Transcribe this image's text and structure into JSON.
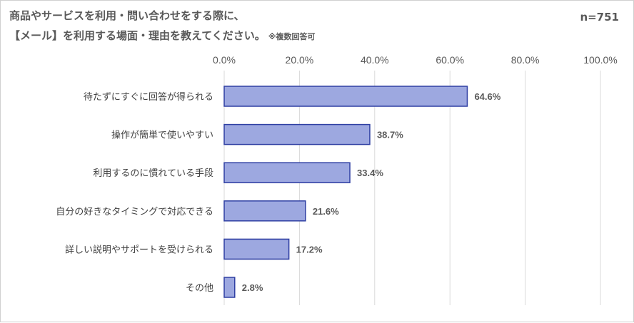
{
  "title": {
    "line1": "商品やサービスを利用・問い合わせをする際に、",
    "line2": "【メール】を利用する場面・理由を教えてください。",
    "note": "※複数回答可"
  },
  "sample_size": "n=751",
  "colors": {
    "bar_fill": "#9da8e0",
    "bar_stroke": "#2f3fa3",
    "grid": "#d9d9d9",
    "text": "#595959"
  },
  "chart_data": {
    "type": "bar",
    "orientation": "horizontal",
    "categories": [
      "待たずにすぐに回答が得られる",
      "操作が簡単で使いやすい",
      "利用するのに慣れている手段",
      "自分の好きなタイミングで対応できる",
      "詳しい説明やサポートを受けられる",
      "その他"
    ],
    "values": [
      64.6,
      38.7,
      33.4,
      21.6,
      17.2,
      2.8
    ],
    "value_labels": [
      "64.6%",
      "38.7%",
      "33.4%",
      "21.6%",
      "17.2%",
      "2.8%"
    ],
    "xlim": [
      0,
      100
    ],
    "ticks": [
      0,
      20,
      40,
      60,
      80,
      100
    ],
    "tick_labels": [
      "0.0%",
      "20.0%",
      "40.0%",
      "60.0%",
      "80.0%",
      "100.0%"
    ],
    "axis_position": "top",
    "grid": true,
    "legend": "none"
  }
}
